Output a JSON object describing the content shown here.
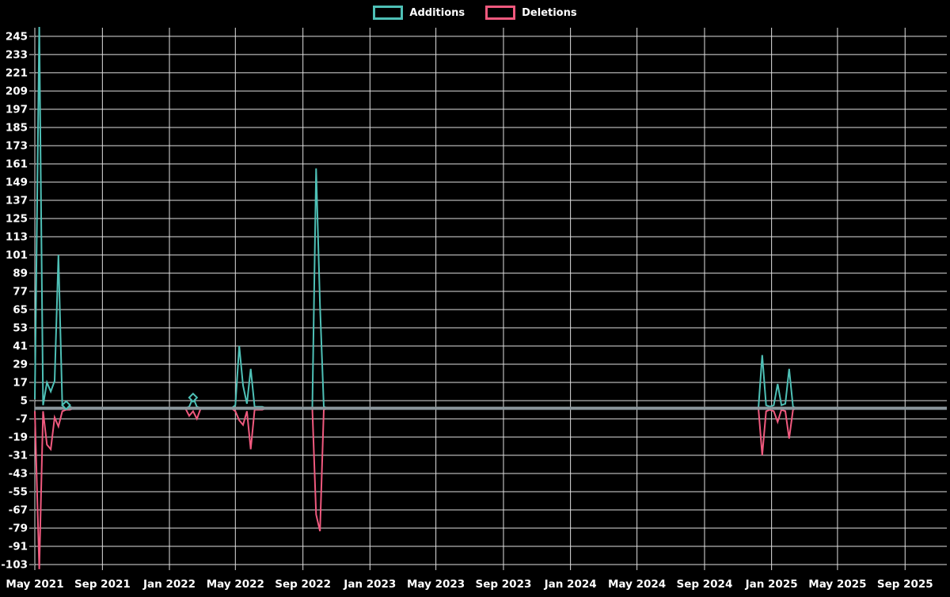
{
  "chart_data": {
    "type": "line",
    "title": "",
    "background": "#000000",
    "grid_color": "#e0e0e0",
    "zero_line_color": "#8b969c",
    "legend_position": "top-center",
    "legend": [
      {
        "label": "Additions",
        "color": "#4ec0b6"
      },
      {
        "label": "Deletions",
        "color": "#f0597e"
      }
    ],
    "x_axis": {
      "domain": [
        "2021-05-01",
        "2025-11-16"
      ],
      "ticks": [
        {
          "label": "May 2021",
          "date": "2021-05-01"
        },
        {
          "label": "Sep 2021",
          "date": "2021-09-01"
        },
        {
          "label": "Jan 2022",
          "date": "2022-01-01"
        },
        {
          "label": "May 2022",
          "date": "2022-05-01"
        },
        {
          "label": "Sep 2022",
          "date": "2022-09-01"
        },
        {
          "label": "Jan 2023",
          "date": "2023-01-01"
        },
        {
          "label": "May 2023",
          "date": "2023-05-01"
        },
        {
          "label": "Sep 2023",
          "date": "2023-09-01"
        },
        {
          "label": "Jan 2024",
          "date": "2024-01-01"
        },
        {
          "label": "May 2024",
          "date": "2024-05-01"
        },
        {
          "label": "Sep 2024",
          "date": "2024-09-01"
        },
        {
          "label": "Jan 2025",
          "date": "2025-01-01"
        },
        {
          "label": "May 2025",
          "date": "2025-05-01"
        },
        {
          "label": "Sep 2025",
          "date": "2025-09-01"
        }
      ]
    },
    "y_axis": {
      "domain": [
        -106.1,
        250.7
      ],
      "ticks": [
        245,
        233,
        221,
        209,
        197,
        185,
        173,
        161,
        149,
        137,
        125,
        113,
        101,
        89,
        77,
        65,
        53,
        41,
        29,
        17,
        5,
        -7,
        -19,
        -31,
        -43,
        -55,
        -67,
        -79,
        -91,
        -103
      ]
    },
    "series": [
      {
        "name": "Additions",
        "color": "#4ec0b6",
        "points": [
          [
            "2021-05-01",
            6
          ],
          [
            "2021-05-09",
            252
          ],
          [
            "2021-05-16",
            2
          ],
          [
            "2021-05-23",
            17
          ],
          [
            "2021-05-30",
            11
          ],
          [
            "2021-06-06",
            18
          ],
          [
            "2021-06-13",
            101
          ],
          [
            "2021-06-20",
            2
          ],
          [
            "2021-06-27",
            2
          ],
          [
            "2021-07-04",
            1
          ],
          [
            "2021-07-11",
            0
          ],
          [
            "2022-01-30",
            0
          ],
          [
            "2022-02-06",
            1
          ],
          [
            "2022-02-13",
            7
          ],
          [
            "2022-02-20",
            1
          ],
          [
            "2022-02-27",
            0
          ],
          [
            "2022-04-24",
            0
          ],
          [
            "2022-05-01",
            2
          ],
          [
            "2022-05-08",
            41
          ],
          [
            "2022-05-15",
            15
          ],
          [
            "2022-05-22",
            3
          ],
          [
            "2022-05-29",
            26
          ],
          [
            "2022-06-05",
            1
          ],
          [
            "2022-06-12",
            1
          ],
          [
            "2022-06-19",
            1
          ],
          [
            "2022-06-26",
            0
          ],
          [
            "2022-09-18",
            0
          ],
          [
            "2022-09-25",
            158
          ],
          [
            "2022-10-02",
            68
          ],
          [
            "2022-10-09",
            1
          ],
          [
            "2022-10-16",
            0
          ],
          [
            "2024-12-08",
            0
          ],
          [
            "2024-12-15",
            35
          ],
          [
            "2024-12-22",
            2
          ],
          [
            "2024-12-29",
            1
          ],
          [
            "2025-01-05",
            2
          ],
          [
            "2025-01-12",
            16
          ],
          [
            "2025-01-19",
            2
          ],
          [
            "2025-01-26",
            3
          ],
          [
            "2025-02-02",
            26
          ],
          [
            "2025-02-09",
            1
          ],
          [
            "2025-02-16",
            0
          ],
          [
            "2025-11-16",
            0
          ]
        ]
      },
      {
        "name": "Deletions",
        "color": "#f0597e",
        "points": [
          [
            "2021-05-01",
            -2
          ],
          [
            "2021-05-09",
            -106
          ],
          [
            "2021-05-16",
            -2
          ],
          [
            "2021-05-23",
            -24
          ],
          [
            "2021-05-30",
            -27
          ],
          [
            "2021-06-06",
            -6
          ],
          [
            "2021-06-13",
            -12
          ],
          [
            "2021-06-20",
            -2
          ],
          [
            "2021-06-27",
            -1
          ],
          [
            "2021-07-04",
            -1
          ],
          [
            "2021-07-11",
            0
          ],
          [
            "2022-01-30",
            0
          ],
          [
            "2022-02-06",
            -5
          ],
          [
            "2022-02-13",
            -2
          ],
          [
            "2022-02-20",
            -7
          ],
          [
            "2022-02-27",
            0
          ],
          [
            "2022-04-24",
            0
          ],
          [
            "2022-05-01",
            -2
          ],
          [
            "2022-05-08",
            -8
          ],
          [
            "2022-05-15",
            -11
          ],
          [
            "2022-05-22",
            -2
          ],
          [
            "2022-05-29",
            -27
          ],
          [
            "2022-06-05",
            -1
          ],
          [
            "2022-06-12",
            -1
          ],
          [
            "2022-06-19",
            -1
          ],
          [
            "2022-06-26",
            0
          ],
          [
            "2022-09-18",
            0
          ],
          [
            "2022-09-25",
            -70
          ],
          [
            "2022-10-02",
            -81
          ],
          [
            "2022-10-09",
            -1
          ],
          [
            "2022-10-16",
            0
          ],
          [
            "2024-12-08",
            0
          ],
          [
            "2024-12-15",
            -31
          ],
          [
            "2024-12-22",
            -2
          ],
          [
            "2024-12-29",
            -1
          ],
          [
            "2025-01-05",
            -2
          ],
          [
            "2025-01-12",
            -9
          ],
          [
            "2025-01-19",
            -1
          ],
          [
            "2025-01-26",
            -2
          ],
          [
            "2025-02-02",
            -20
          ],
          [
            "2025-02-09",
            -1
          ],
          [
            "2025-02-16",
            0
          ],
          [
            "2025-11-16",
            0
          ]
        ]
      }
    ],
    "markers": [
      {
        "series": "Additions",
        "date": "2021-06-27",
        "value": 2
      },
      {
        "series": "Additions",
        "date": "2022-02-13",
        "value": 7
      }
    ]
  }
}
